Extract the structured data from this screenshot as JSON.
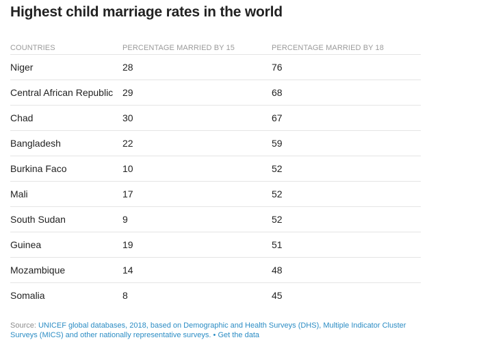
{
  "title": "Highest child marriage rates in the world",
  "columns": [
    "COUNTRIES",
    "PERCENTAGE MARRIED BY 15",
    "PERCENTAGE MARRIED BY 18"
  ],
  "chart_data": {
    "type": "table",
    "title": "Highest child marriage rates in the world",
    "columns": [
      "COUNTRIES",
      "PERCENTAGE MARRIED BY 15",
      "PERCENTAGE MARRIED BY 18"
    ],
    "rows": [
      [
        "Niger",
        "28",
        "76"
      ],
      [
        "Central African Republic",
        "29",
        "68"
      ],
      [
        "Chad",
        "30",
        "67"
      ],
      [
        "Bangladesh",
        "22",
        "59"
      ],
      [
        "Burkina Faco",
        "10",
        "52"
      ],
      [
        "Mali",
        "17",
        "52"
      ],
      [
        "South Sudan",
        "9",
        "52"
      ],
      [
        "Guinea",
        "19",
        "51"
      ],
      [
        "Mozambique",
        "14",
        "48"
      ],
      [
        "Somalia",
        "8",
        "45"
      ]
    ]
  },
  "footer": {
    "source_label": "Source:",
    "source_text": "UNICEF global databases, 2018, based on Demographic and Health Surveys (DHS), Multiple Indicator Cluster Surveys (MICS) and other nationally representative surveys.",
    "separator": "•",
    "get_data_label": "Get the data"
  },
  "colors": {
    "link": "#2b8cc4",
    "header_text": "#9a9a9a",
    "divider": "#e4e4e4",
    "body_text": "#222222"
  }
}
